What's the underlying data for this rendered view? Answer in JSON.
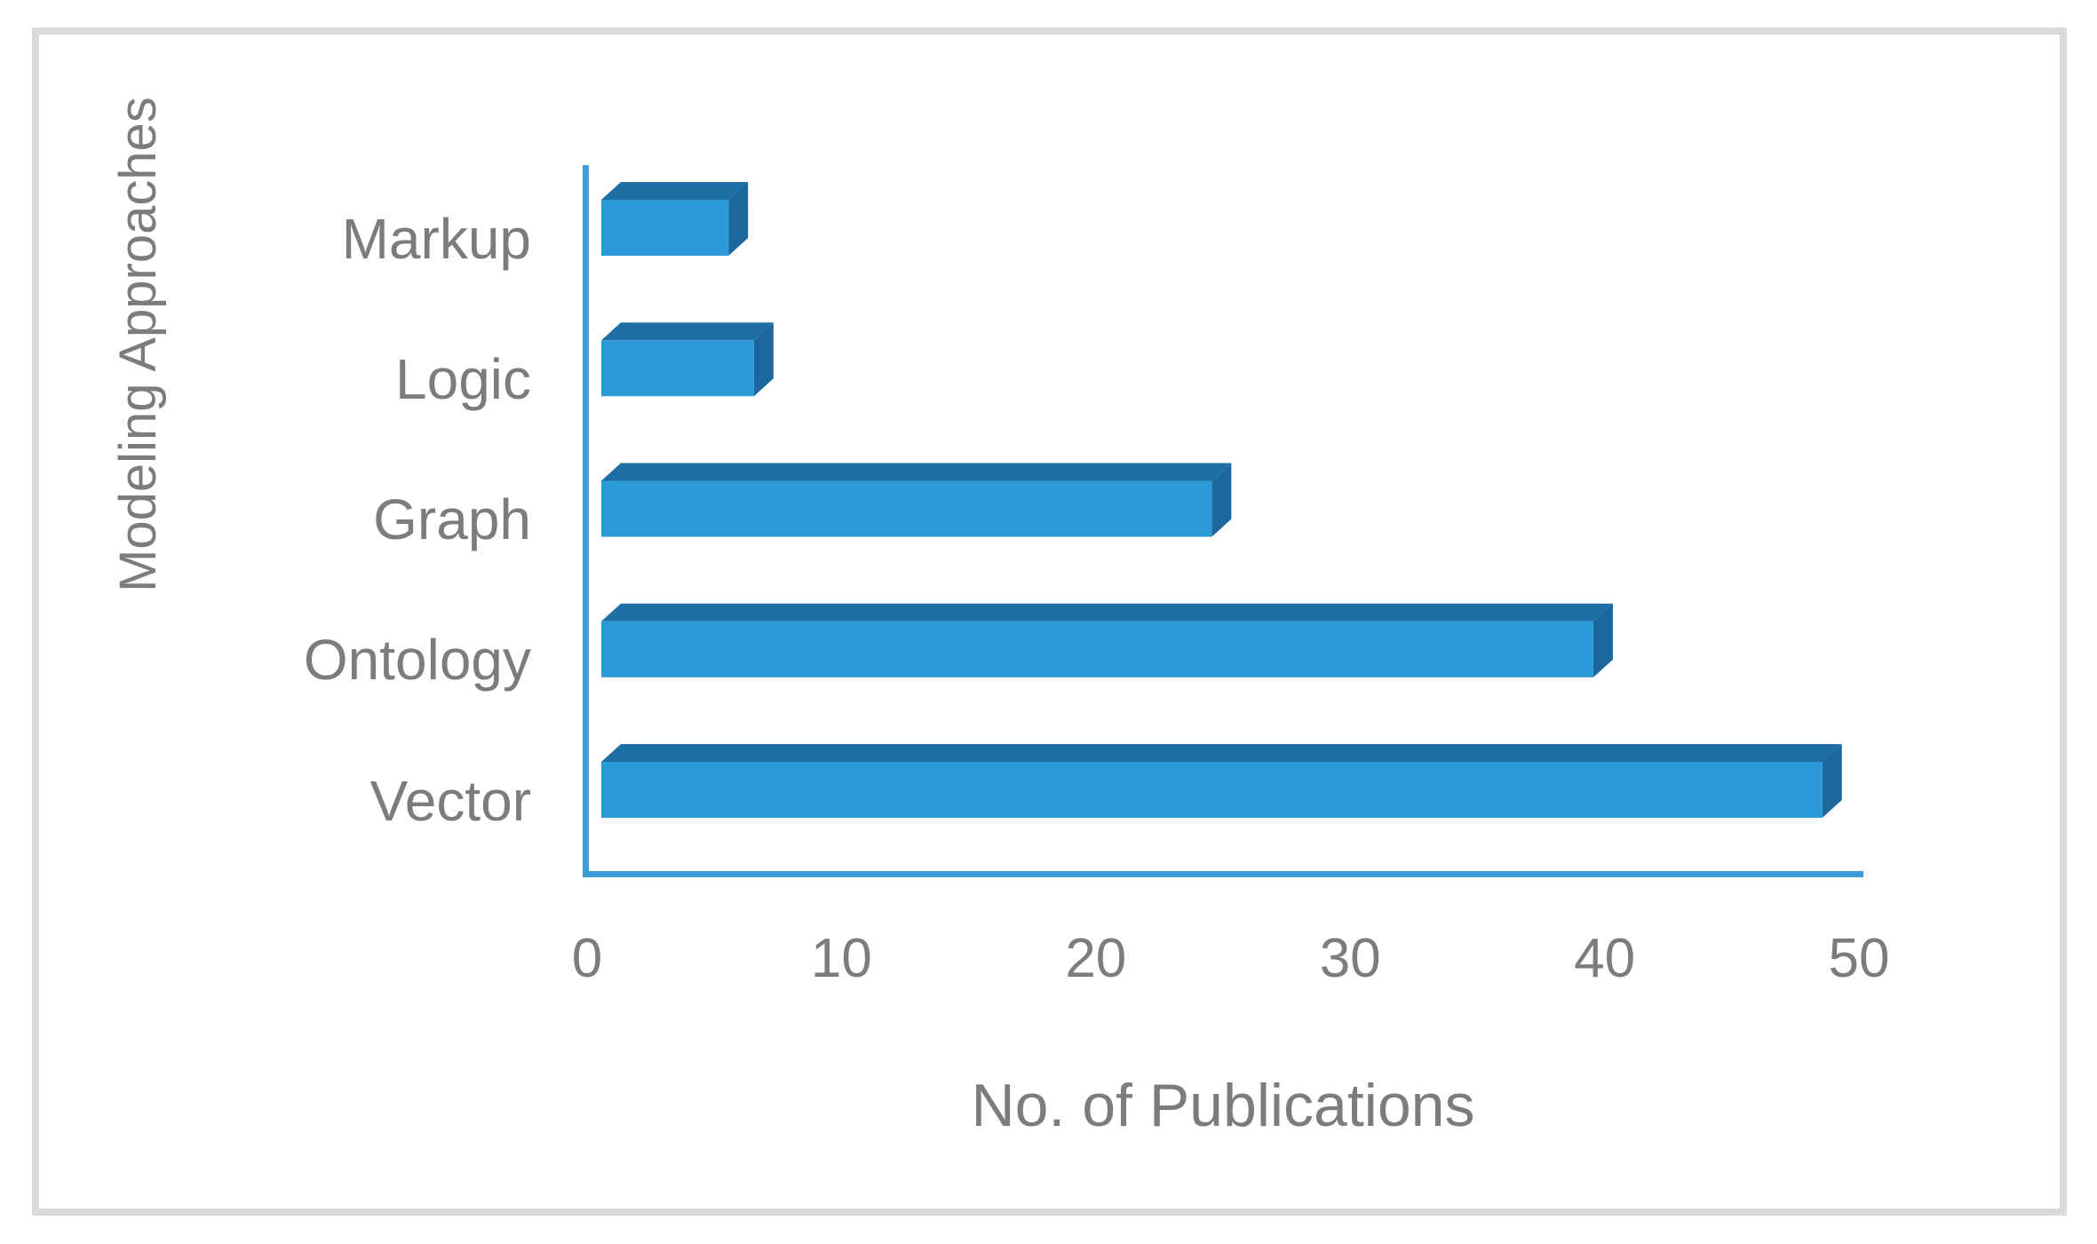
{
  "figure": {
    "background": "#FFFFFF",
    "border_color": "#D9D9D9"
  },
  "chart_data": {
    "type": "bar",
    "orientation": "horizontal",
    "style_3d": true,
    "categories": [
      "Markup",
      "Logic",
      "Graph",
      "Ontology",
      "Vector"
    ],
    "values": [
      5,
      6,
      24,
      39,
      48
    ],
    "xlabel": "No. of Publications",
    "ylabel": "Modeling Approaches",
    "xlim": [
      0,
      50
    ],
    "xticks": [
      0,
      10,
      20,
      30,
      40,
      50
    ],
    "grid": false,
    "legend": false,
    "bar_color": "#2B9BD7",
    "bar_top_color": "#1E6FA5",
    "bar_side_color": "#1C689C",
    "axis_line_color": "#3A9FDB",
    "text_color": "#7C7C7C"
  }
}
